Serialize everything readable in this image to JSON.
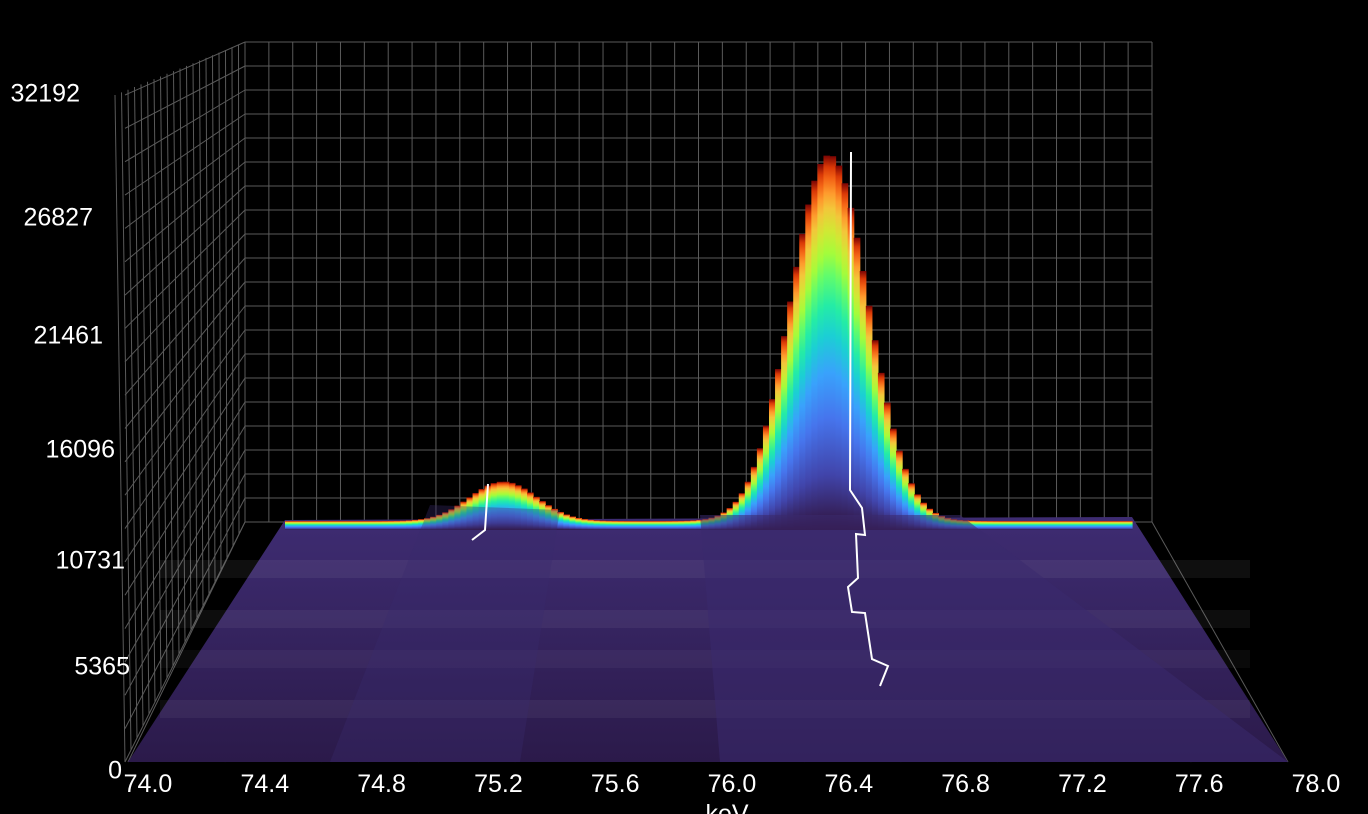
{
  "chart_data": {
    "type": "surface3d",
    "xlabel": "keV",
    "xlim": [
      74.0,
      78.0
    ],
    "x_ticks": [
      "74.0",
      "74.4",
      "74.8",
      "75.2",
      "75.6",
      "76.0",
      "76.4",
      "76.8",
      "77.2",
      "77.6",
      "78.0"
    ],
    "zlim": [
      0,
      32192
    ],
    "z_ticks": [
      "0",
      "5365",
      "10731",
      "16096",
      "21461",
      "26827",
      "32192"
    ],
    "colormap": "turbo",
    "background": "#000000",
    "grid": true,
    "peaks": [
      {
        "center_kev": 75.15,
        "height": 12900,
        "sigma_kev": 0.13
      },
      {
        "center_kev": 76.42,
        "height": 28600,
        "sigma_kev": 0.15
      }
    ],
    "baseline": 11000,
    "series": [
      {
        "x": [
          74.0,
          74.2,
          74.4,
          74.6,
          74.8,
          75.0,
          75.1,
          75.2,
          75.3,
          75.4,
          75.6,
          75.8,
          76.0,
          76.1,
          76.2,
          76.3,
          76.4,
          76.5,
          76.6,
          76.7,
          76.8,
          77.0,
          77.2,
          77.4,
          77.6,
          78.0
        ],
        "y": [
          11000,
          11050,
          11100,
          11200,
          11400,
          12000,
          12700,
          12900,
          12500,
          11800,
          11500,
          11900,
          13500,
          16000,
          20500,
          25500,
          28600,
          26500,
          21000,
          15500,
          12800,
          11600,
          11400,
          11300,
          11200,
          11100
        ]
      }
    ],
    "ridge_lines": [
      {
        "x": [
          75.1,
          75.12,
          75.15,
          75.17
        ],
        "y": [
          12900,
          12300,
          11200,
          10400
        ]
      },
      {
        "x": [
          76.42,
          76.44,
          76.46,
          76.48,
          76.5,
          76.52,
          76.55
        ],
        "y": [
          28600,
          16000,
          13000,
          10000,
          8000,
          6000,
          4500
        ]
      }
    ]
  }
}
